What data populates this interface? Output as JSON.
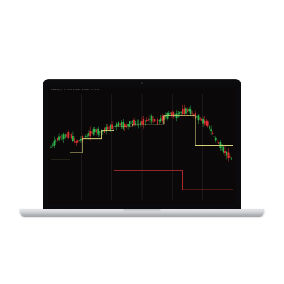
{
  "screen": {
    "header_text": "EURUSD,H1  1.0785 1.0801 1.0762 1.0779"
  },
  "colors": {
    "background": "#0a0809",
    "grid": "#2a2426",
    "candle_up": "#2fb24a",
    "candle_down": "#d93030",
    "indicator_upper": "#d8d27a",
    "indicator_lower": "#c0302e"
  },
  "chart_data": {
    "type": "line",
    "series": [
      {
        "values": [
          0.5,
          0.58,
          0.6,
          0.62,
          0.55,
          0.58,
          0.62,
          0.66,
          0.64,
          0.68,
          0.7,
          0.72,
          0.7,
          0.74,
          0.72,
          0.75,
          0.77,
          0.74,
          0.78,
          0.82,
          0.8,
          0.84,
          0.85,
          0.8,
          0.76,
          0.72,
          0.6,
          0.52,
          0.44,
          0.38
        ]
      },
      {
        "values": [
          0.38,
          0.38,
          0.38,
          0.45,
          0.45,
          0.58,
          0.58,
          0.58,
          0.66,
          0.66,
          0.7,
          0.7,
          0.7,
          0.72,
          0.72,
          0.72,
          0.72,
          0.72,
          0.8,
          0.8,
          0.8,
          0.8,
          0.8,
          0.52,
          0.52,
          0.52,
          0.52,
          0.52,
          0.52,
          0.52
        ]
      },
      {
        "values": [
          null,
          null,
          null,
          null,
          null,
          null,
          null,
          null,
          null,
          null,
          0.28,
          0.28,
          0.28,
          0.28,
          0.28,
          0.28,
          0.28,
          0.28,
          0.28,
          0.28,
          0.28,
          0.1,
          0.1,
          0.1,
          0.1,
          0.1,
          0.1,
          0.1,
          0.1,
          0.1
        ]
      }
    ],
    "ylim": [
      0,
      1
    ],
    "grid": true
  }
}
